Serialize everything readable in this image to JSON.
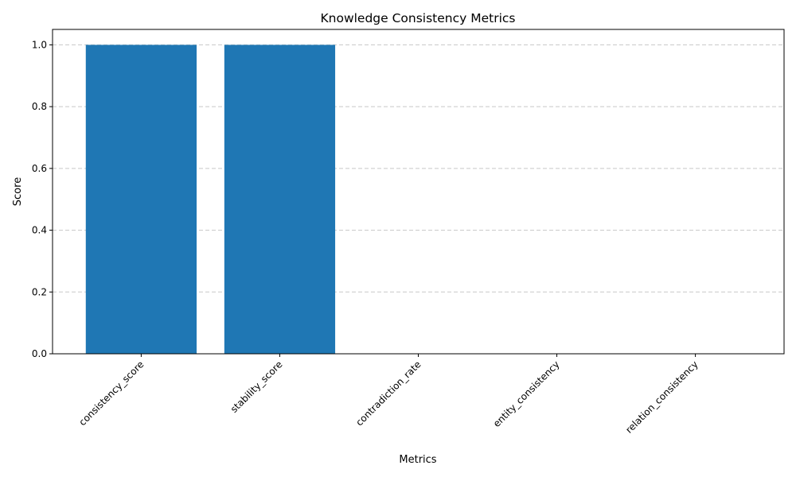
{
  "chart_data": {
    "type": "bar",
    "title": "Knowledge Consistency Metrics",
    "xlabel": "Metrics",
    "ylabel": "Score",
    "categories": [
      "consistency_score",
      "stability_score",
      "contradiction_rate",
      "entity_consistency",
      "relation_consistency"
    ],
    "values": [
      1.0,
      1.0,
      0.0,
      0.0,
      0.0
    ],
    "ylim": [
      0,
      1.05
    ],
    "yticks": [
      0.0,
      0.2,
      0.4,
      0.6,
      0.8,
      1.0
    ],
    "ytick_labels": [
      "0.0",
      "0.2",
      "0.4",
      "0.6",
      "0.8",
      "1.0"
    ],
    "grid": "y-dashed",
    "bar_color": "#1f77b4",
    "grid_color": "#c8c8c8",
    "xtick_rotation": 45
  }
}
